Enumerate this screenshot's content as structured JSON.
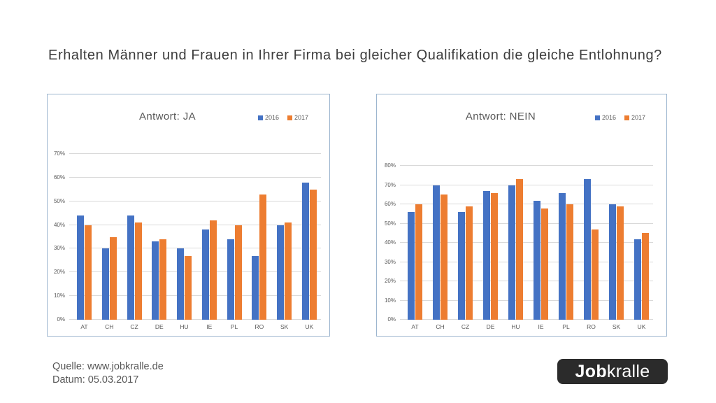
{
  "main_title": "Erhalten Männer und Frauen in Ihrer Firma bei gleicher Qualifikation die gleiche Entlohnung?",
  "chart_data": [
    {
      "type": "bar",
      "title": "Antwort: JA",
      "categories": [
        "AT",
        "CH",
        "CZ",
        "DE",
        "HU",
        "IE",
        "PL",
        "RO",
        "SK",
        "UK"
      ],
      "series": [
        {
          "name": "2016",
          "color": "#4472C4",
          "values": [
            44,
            30,
            44,
            33,
            30,
            38,
            34,
            27,
            40,
            58
          ]
        },
        {
          "name": "2017",
          "color": "#ED7D31",
          "values": [
            40,
            35,
            41,
            34,
            27,
            42,
            40,
            53,
            41,
            55
          ]
        }
      ],
      "xlabel": "",
      "ylabel": "",
      "ylim": [
        0,
        70
      ],
      "ytick_step": 10,
      "ytick_suffix": "%",
      "grid": true,
      "legend_position": "top-right"
    },
    {
      "type": "bar",
      "title": "Antwort: NEIN",
      "categories": [
        "AT",
        "CH",
        "CZ",
        "DE",
        "HU",
        "IE",
        "PL",
        "RO",
        "SK",
        "UK"
      ],
      "series": [
        {
          "name": "2016",
          "color": "#4472C4",
          "values": [
            56,
            70,
            56,
            67,
            70,
            62,
            66,
            73,
            60,
            42
          ]
        },
        {
          "name": "2017",
          "color": "#ED7D31",
          "values": [
            60,
            65,
            59,
            66,
            73,
            58,
            60,
            47,
            59,
            45
          ]
        }
      ],
      "xlabel": "",
      "ylabel": "",
      "ylim": [
        0,
        80
      ],
      "ytick_step": 10,
      "ytick_suffix": "%",
      "grid": true,
      "legend_position": "top-right"
    }
  ],
  "footer": {
    "source_label": "Quelle: www.jobkralle.de",
    "date_label": "Datum: 05.03.2017"
  },
  "logo": {
    "text_bold": "Job",
    "text_regular": "kralle",
    "bg_color": "#2b2b2b",
    "text_color": "#ffffff"
  },
  "colors": {
    "series_2016": "#4472C4",
    "series_2017": "#ED7D31",
    "panel_border": "#9db6cf",
    "gridline": "#d9d9d9",
    "axis_text": "#595959",
    "title_text": "#3d3d3d"
  }
}
